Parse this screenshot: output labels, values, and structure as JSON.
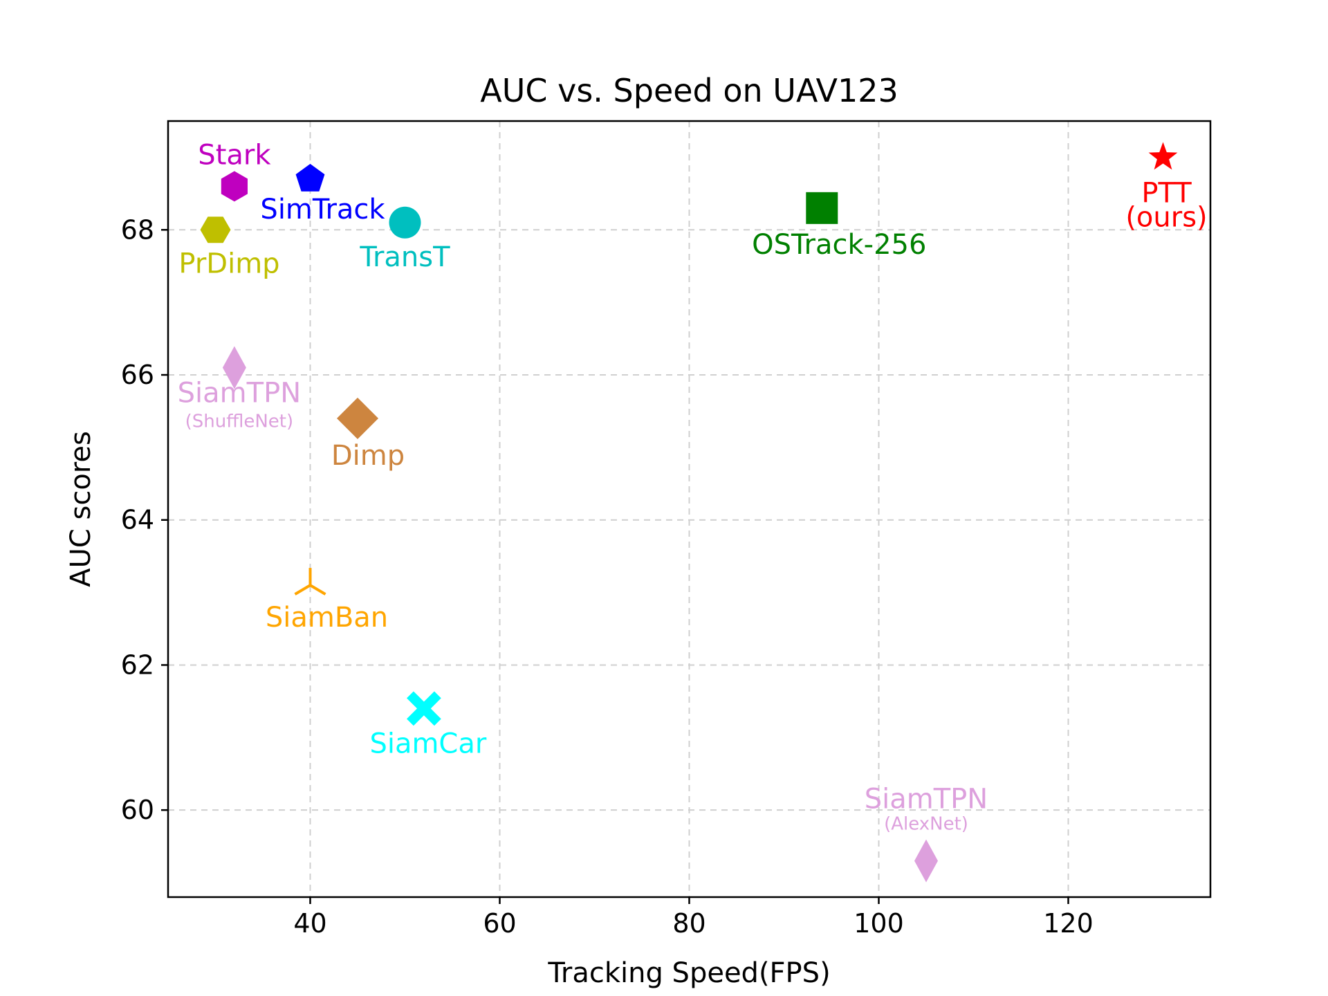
{
  "chart_data": {
    "type": "scatter",
    "title": "AUC vs. Speed on UAV123",
    "xlabel": "Tracking Speed(FPS)",
    "ylabel": "AUC scores",
    "xlim": [
      25,
      135
    ],
    "ylim": [
      58.8,
      69.5
    ],
    "xticks": [
      40,
      60,
      80,
      100,
      120
    ],
    "yticks": [
      60,
      62,
      64,
      66,
      68
    ],
    "grid": true,
    "points": [
      {
        "label": "Stark",
        "sublabel": "",
        "x": 32,
        "y": 68.6,
        "marker": "hexagon",
        "color": "#bf00bf"
      },
      {
        "label": "SimTrack",
        "sublabel": "",
        "x": 40,
        "y": 68.7,
        "marker": "pentagon",
        "color": "#0000ff"
      },
      {
        "label": "PrDimp",
        "sublabel": "",
        "x": 30,
        "y": 68.0,
        "marker": "hexagon-flat",
        "color": "#bfbf00"
      },
      {
        "label": "TransT",
        "sublabel": "",
        "x": 50,
        "y": 68.1,
        "marker": "circle",
        "color": "#00bfbf"
      },
      {
        "label": "OSTrack-256",
        "sublabel": "",
        "x": 94,
        "y": 68.3,
        "marker": "square",
        "color": "#008000"
      },
      {
        "label": "PTT",
        "sublabel": "(ours)",
        "x": 130,
        "y": 69.0,
        "marker": "star",
        "color": "#ff0000"
      },
      {
        "label": "SiamTPN",
        "sublabel": "(ShuffleNet)",
        "x": 32,
        "y": 66.1,
        "marker": "thin-diamond",
        "color": "#dda0dd"
      },
      {
        "label": "Dimp",
        "sublabel": "",
        "x": 45,
        "y": 65.4,
        "marker": "diamond",
        "color": "#cd853f"
      },
      {
        "label": "SiamBan",
        "sublabel": "",
        "x": 40,
        "y": 63.1,
        "marker": "tri-up",
        "color": "#ffa500"
      },
      {
        "label": "SiamCar",
        "sublabel": "",
        "x": 52,
        "y": 61.4,
        "marker": "x-filled",
        "color": "#00ffff"
      },
      {
        "label": "SiamTPN",
        "sublabel": "(AlexNet)",
        "x": 105,
        "y": 59.3,
        "marker": "thin-diamond",
        "color": "#dda0dd"
      }
    ]
  }
}
